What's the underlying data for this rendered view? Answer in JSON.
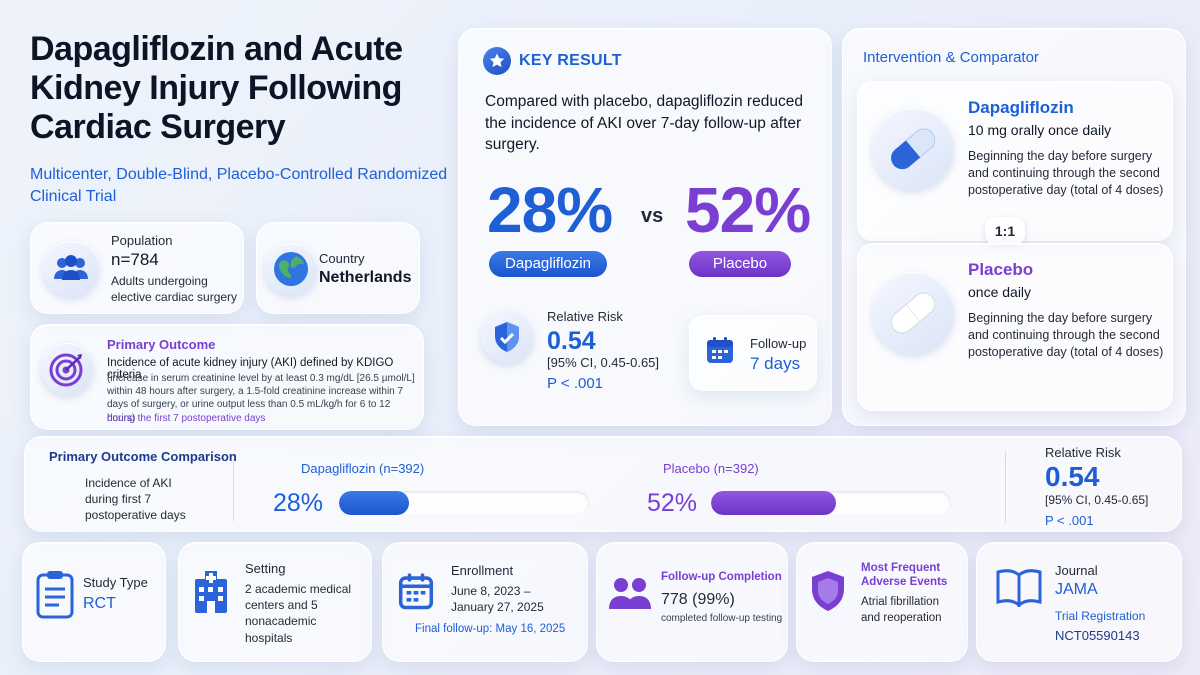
{
  "title": "Dapagliflozin and Acute Kidney Injury Following Cardiac Surgery",
  "subtitle": "Multicenter, Double-Blind, Placebo-Controlled Randomized Clinical Trial",
  "population": {
    "label": "Population",
    "n": "n=784",
    "desc": "Adults undergoing elective cardiac surgery"
  },
  "country": {
    "label": "Country",
    "value": "Netherlands"
  },
  "primary_outcome": {
    "label": "Primary Outcome",
    "text": "Incidence of acute kidney injury (AKI) defined by KDIGO criteria",
    "detail": "(increase in serum creatinine level by at least 0.3 mg/dL [26.5 µmol/L] within 48 hours after surgery, a 1.5-fold creatinine increase within 7 days of surgery, or urine output less than 0.5 mL/kg/h for 6 to 12 hours)",
    "period": "during the first 7 postoperative days"
  },
  "key_result": {
    "label": "KEY RESULT",
    "text": "Compared with placebo, dapagliflozin reduced the incidence of AKI over 7-day follow-up after surgery.",
    "dapa_pct": "28%",
    "vs": "vs",
    "placebo_pct": "52%",
    "dapa_label": "Dapagliflozin",
    "placebo_label": "Placebo",
    "rr_label": "Relative Risk",
    "rr_value": "0.54",
    "rr_ci": "[95% CI, 0.45-0.65]",
    "rr_p": "P < .001",
    "followup_label": "Follow-up",
    "followup_value": "7 days"
  },
  "intervention": {
    "header": "Intervention & Comparator",
    "dapa": {
      "name": "Dapagliflozin",
      "dose": "10 mg orally once daily",
      "desc": "Beginning the day before surgery and continuing through the second postoperative day (total of 4 doses)"
    },
    "ratio": "1:1",
    "placebo": {
      "name": "Placebo",
      "dose": "once daily",
      "desc": "Beginning the day before surgery and continuing through the second postoperative day (total of 4 doses)"
    }
  },
  "comparison": {
    "header": "Primary Outcome Comparison",
    "desc": "Incidence of AKI during first 7 postoperative days",
    "dapa_label": "Dapagliflozin (n=392)",
    "dapa_pct": "28%",
    "dapa_value": 28,
    "placebo_label": "Placebo (n=392)",
    "placebo_pct": "52%",
    "placebo_value": 52,
    "rr_label": "Relative Risk",
    "rr_value": "0.54",
    "rr_ci": "[95% CI, 0.45-0.65]",
    "rr_p": "P < .001"
  },
  "footer": {
    "study_type": {
      "label": "Study Type",
      "value": "RCT"
    },
    "setting": {
      "label": "Setting",
      "value": "2 academic medical centers and 5 nonacademic hospitals"
    },
    "enrollment": {
      "label": "Enrollment",
      "value": "June 8, 2023 – January 27, 2025",
      "final": "Final follow-up: May 16, 2025"
    },
    "followup": {
      "label": "Follow-up Completion",
      "value": "778 (99%)",
      "desc": "completed follow-up testing"
    },
    "adverse": {
      "label": "Most Frequent Adverse Events",
      "value": "Atrial fibrillation and reoperation"
    },
    "journal": {
      "label": "Journal",
      "value": "JAMA",
      "reg_label": "Trial Registration",
      "reg_value": "NCT05590143"
    }
  },
  "colors": {
    "blue": "#1e5fd6",
    "purple": "#7a3fd2"
  }
}
